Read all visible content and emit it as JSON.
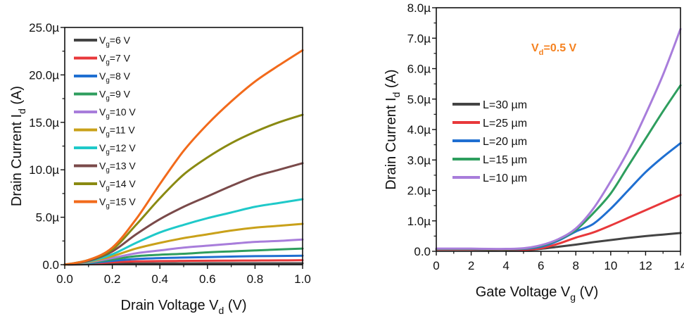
{
  "chart_data": [
    {
      "type": "line",
      "xlabel": {
        "main": "Drain Voltage V",
        "sub": "d",
        "unit": " (V)"
      },
      "ylabel": {
        "main": "Drain Current I",
        "sub": "d",
        "unit": " (A)"
      },
      "xlim": [
        0,
        1.0
      ],
      "ylim": [
        0,
        25
      ],
      "x_ticks": [
        "0.0",
        "0.2",
        "0.4",
        "0.6",
        "0.8",
        "1.0"
      ],
      "y_ticks": [
        "0.0",
        "5.0µ",
        "10.0µ",
        "15.0µ",
        "20.0µ",
        "25.0µ"
      ],
      "y_unit": "µA",
      "grid": false,
      "legend_placement": "top-left",
      "x": [
        0,
        0.1,
        0.2,
        0.3,
        0.4,
        0.5,
        0.6,
        0.7,
        0.8,
        0.9,
        1.0
      ],
      "series": [
        {
          "name": {
            "main": "V",
            "sub": "g",
            "rest": "=6 V"
          },
          "color": "#444444",
          "values": [
            0,
            0.05,
            0.1,
            0.12,
            0.13,
            0.14,
            0.15,
            0.15,
            0.15,
            0.15,
            0.15
          ]
        },
        {
          "name": {
            "main": "V",
            "sub": "g",
            "rest": "=7 V"
          },
          "color": "#e8383b",
          "values": [
            0,
            0.1,
            0.25,
            0.35,
            0.38,
            0.4,
            0.42,
            0.43,
            0.44,
            0.45,
            0.47
          ]
        },
        {
          "name": {
            "main": "V",
            "sub": "g",
            "rest": "=8 V"
          },
          "color": "#1f6fd1",
          "values": [
            0,
            0.15,
            0.4,
            0.6,
            0.7,
            0.75,
            0.8,
            0.85,
            0.9,
            0.92,
            0.95
          ]
        },
        {
          "name": {
            "main": "V",
            "sub": "g",
            "rest": "=9 V"
          },
          "color": "#2e9e5e",
          "values": [
            0,
            0.2,
            0.55,
            0.9,
            1.05,
            1.15,
            1.3,
            1.4,
            1.5,
            1.6,
            1.7
          ]
        },
        {
          "name": {
            "main": "V",
            "sub": "g",
            "rest": "=10 V"
          },
          "color": "#a87ddb",
          "values": [
            0,
            0.25,
            0.7,
            1.2,
            1.5,
            1.8,
            2.0,
            2.2,
            2.4,
            2.5,
            2.65
          ]
        },
        {
          "name": {
            "main": "V",
            "sub": "g",
            "rest": "=11 V"
          },
          "color": "#c9a11a",
          "values": [
            0,
            0.3,
            0.9,
            1.7,
            2.3,
            2.8,
            3.2,
            3.6,
            3.9,
            4.1,
            4.3
          ]
        },
        {
          "name": {
            "main": "V",
            "sub": "g",
            "rest": "=12 V"
          },
          "color": "#1fc9c9",
          "values": [
            0,
            0.35,
            1.1,
            2.3,
            3.4,
            4.2,
            4.9,
            5.5,
            6.1,
            6.5,
            6.9
          ]
        },
        {
          "name": {
            "main": "V",
            "sub": "g",
            "rest": "=13 V"
          },
          "color": "#7a4a4a",
          "values": [
            0,
            0.4,
            1.4,
            3.2,
            4.8,
            6.1,
            7.2,
            8.3,
            9.3,
            10.0,
            10.7
          ]
        },
        {
          "name": {
            "main": "V",
            "sub": "g",
            "rest": "=14 V"
          },
          "color": "#8a8a12",
          "values": [
            0,
            0.5,
            1.6,
            4.2,
            7.0,
            9.5,
            11.3,
            12.8,
            14.0,
            15.0,
            15.8
          ]
        },
        {
          "name": {
            "main": "V",
            "sub": "g",
            "rest": "=15 V"
          },
          "color": "#f26a1b",
          "values": [
            0,
            0.5,
            1.8,
            4.8,
            8.5,
            12.0,
            14.8,
            17.2,
            19.3,
            21.0,
            22.6
          ]
        }
      ]
    },
    {
      "type": "line",
      "xlabel": {
        "main": "Gate Voltage V",
        "sub": "g",
        "unit": " (V)"
      },
      "ylabel": {
        "main": "Drain Current I",
        "sub": "d",
        "unit": " (A)"
      },
      "xlim": [
        0,
        14
      ],
      "ylim": [
        0,
        8
      ],
      "x_ticks": [
        "0",
        "2",
        "4",
        "6",
        "8",
        "10",
        "12",
        "14"
      ],
      "y_ticks": [
        "0.0",
        "1.0µ",
        "2.0µ",
        "3.0µ",
        "4.0µ",
        "5.0µ",
        "6.0µ",
        "7.0µ",
        "8.0µ"
      ],
      "y_unit": "µA",
      "grid": false,
      "legend_placement": "center-left",
      "annotation": {
        "main": "V",
        "sub": "d",
        "rest": "=0.5 V",
        "color": "#f58220"
      },
      "x": [
        0,
        1,
        2,
        3,
        4,
        5,
        6,
        7,
        8,
        9,
        10,
        11,
        12,
        13,
        14
      ],
      "series": [
        {
          "name": "L=30 µm",
          "color": "#444444",
          "values": [
            0.06,
            0.06,
            0.06,
            0.05,
            0.05,
            0.03,
            0.08,
            0.15,
            0.22,
            0.3,
            0.37,
            0.44,
            0.5,
            0.55,
            0.6
          ]
        },
        {
          "name": "L=25 µm",
          "color": "#e8383b",
          "values": [
            0.07,
            0.07,
            0.07,
            0.06,
            0.06,
            0.05,
            0.1,
            0.25,
            0.45,
            0.62,
            0.85,
            1.1,
            1.35,
            1.6,
            1.85
          ]
        },
        {
          "name": "L=20 µm",
          "color": "#1f6fd1",
          "values": [
            0.08,
            0.08,
            0.08,
            0.07,
            0.07,
            0.08,
            0.15,
            0.35,
            0.65,
            0.9,
            1.4,
            2.0,
            2.6,
            3.1,
            3.55
          ]
        },
        {
          "name": "L=15 µm",
          "color": "#2e9e5e",
          "values": [
            0.08,
            0.08,
            0.08,
            0.07,
            0.07,
            0.09,
            0.18,
            0.38,
            0.7,
            1.25,
            1.9,
            2.8,
            3.7,
            4.6,
            5.45
          ]
        },
        {
          "name": "L=10 µm",
          "color": "#a87ddb",
          "values": [
            0.09,
            0.09,
            0.09,
            0.08,
            0.08,
            0.1,
            0.2,
            0.4,
            0.75,
            1.4,
            2.3,
            3.3,
            4.5,
            5.8,
            7.3
          ]
        }
      ]
    }
  ]
}
